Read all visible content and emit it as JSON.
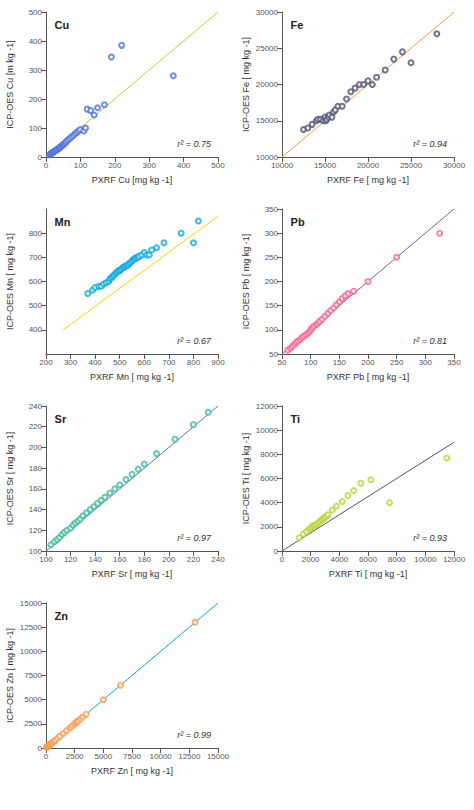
{
  "chart_data": [
    {
      "type": "scatter",
      "title": "Cu",
      "annotation": "r² = 0.75",
      "xlabel": "PXRF Cu [mg kg -1]",
      "ylabel": "ICP-OES Cu [m kg -1]",
      "xlim": [
        0,
        500
      ],
      "ylim": [
        0,
        500
      ],
      "xticks": [
        0,
        100,
        200,
        300,
        400,
        500
      ],
      "yticks": [
        0,
        100,
        200,
        300,
        400,
        500
      ],
      "grid": false,
      "series": [
        {
          "type": "scatter",
          "marker": "circle",
          "x": [
            10,
            12,
            15,
            18,
            20,
            22,
            25,
            28,
            30,
            32,
            35,
            38,
            40,
            42,
            45,
            48,
            50,
            52,
            55,
            58,
            60,
            65,
            70,
            75,
            80,
            85,
            90,
            95,
            100,
            110,
            115,
            120,
            130,
            140,
            150,
            170,
            190,
            220,
            370
          ],
          "values": [
            8,
            10,
            12,
            14,
            16,
            18,
            20,
            22,
            24,
            26,
            28,
            30,
            32,
            35,
            38,
            40,
            42,
            45,
            48,
            50,
            55,
            60,
            65,
            70,
            75,
            80,
            85,
            90,
            95,
            90,
            100,
            165,
            160,
            145,
            170,
            180,
            345,
            385,
            280
          ]
        },
        {
          "type": "line",
          "x": [
            0,
            500
          ],
          "values": [
            0,
            500
          ]
        }
      ]
    },
    {
      "type": "scatter",
      "title": "Fe",
      "annotation": "r² = 0.94",
      "xlabel": "PXRF Fe [ mg kg -1]",
      "ylabel": "ICP-OES Fe [ mg kg -1]",
      "xlim": [
        10000,
        30000
      ],
      "ylim": [
        10000,
        30000
      ],
      "xticks": [
        10000,
        15000,
        20000,
        25000,
        30000
      ],
      "yticks": [
        10000,
        15000,
        20000,
        25000,
        30000
      ],
      "grid": false,
      "series": [
        {
          "type": "scatter",
          "marker": "circle",
          "x": [
            12500,
            13000,
            13500,
            14000,
            14200,
            14500,
            14800,
            15000,
            15100,
            15200,
            15400,
            15500,
            15800,
            16000,
            16200,
            16500,
            17000,
            17500,
            18000,
            18500,
            19000,
            19500,
            20000,
            20500,
            21000,
            22000,
            23000,
            24000,
            25000,
            28000
          ],
          "values": [
            13800,
            14000,
            14500,
            15000,
            15200,
            15200,
            15000,
            15500,
            15000,
            15200,
            15500,
            15800,
            15500,
            16200,
            16500,
            17000,
            17000,
            18000,
            19000,
            19500,
            20000,
            20000,
            20500,
            20000,
            21000,
            22000,
            23500,
            24500,
            23000,
            27000
          ]
        },
        {
          "type": "line",
          "x": [
            10000,
            30000
          ],
          "values": [
            10000,
            30000
          ]
        }
      ]
    },
    {
      "type": "scatter",
      "title": "Mn",
      "annotation": "r² = 0.67",
      "xlabel": "PXRF Mn [ mg kg -1]",
      "ylabel": "ICP-OES Mn [ mg kg -1]",
      "xlim": [
        200,
        900
      ],
      "ylim": [
        300,
        900
      ],
      "xticks": [
        200,
        300,
        400,
        500,
        600,
        700,
        800,
        900
      ],
      "yticks": [
        400,
        500,
        600,
        700,
        800
      ],
      "grid": false,
      "series": [
        {
          "type": "scatter",
          "marker": "circle",
          "x": [
            370,
            390,
            400,
            415,
            425,
            435,
            445,
            455,
            460,
            465,
            470,
            475,
            480,
            485,
            490,
            495,
            500,
            505,
            510,
            515,
            520,
            525,
            530,
            535,
            540,
            545,
            550,
            555,
            560,
            565,
            570,
            575,
            580,
            590,
            600,
            610,
            620,
            630,
            650,
            680,
            750,
            800,
            820
          ],
          "values": [
            550,
            565,
            575,
            580,
            580,
            590,
            595,
            600,
            610,
            615,
            620,
            625,
            630,
            635,
            640,
            645,
            645,
            650,
            655,
            660,
            660,
            665,
            665,
            670,
            675,
            680,
            685,
            690,
            695,
            695,
            700,
            700,
            705,
            710,
            720,
            710,
            710,
            730,
            740,
            760,
            800,
            760,
            850
          ]
        },
        {
          "type": "line",
          "x": [
            270,
            900
          ],
          "values": [
            400,
            870
          ]
        }
      ]
    },
    {
      "type": "scatter",
      "title": "Pb",
      "annotation": "r² = 0.81",
      "xlabel": "PXRF Pb [ mg kg -1]",
      "ylabel": "ICP-OES Pb [ mg kg -1]",
      "xlim": [
        50,
        350
      ],
      "ylim": [
        50,
        350
      ],
      "xticks": [
        50,
        100,
        150,
        200,
        250,
        300,
        350
      ],
      "yticks": [
        50,
        100,
        150,
        200,
        250,
        300,
        350
      ],
      "grid": false,
      "series": [
        {
          "type": "scatter",
          "marker": "circle",
          "x": [
            60,
            65,
            68,
            72,
            75,
            78,
            82,
            85,
            88,
            92,
            95,
            98,
            100,
            103,
            106,
            110,
            113,
            116,
            120,
            125,
            130,
            135,
            140,
            145,
            150,
            155,
            160,
            165,
            175,
            200,
            250,
            325
          ],
          "values": [
            58,
            62,
            66,
            70,
            74,
            77,
            80,
            84,
            87,
            90,
            93,
            96,
            100,
            104,
            108,
            111,
            114,
            118,
            122,
            128,
            134,
            140,
            145,
            152,
            158,
            165,
            170,
            175,
            180,
            200,
            250,
            300
          ]
        },
        {
          "type": "line",
          "x": [
            50,
            350
          ],
          "values": [
            50,
            350
          ]
        }
      ]
    },
    {
      "type": "scatter",
      "title": "Sr",
      "annotation": "r² = 0.97",
      "xlabel": "PXRF Sr [ mg kg -1]",
      "ylabel": "ICP-OES Sr [ mg kg -1]",
      "xlim": [
        100,
        240
      ],
      "ylim": [
        100,
        240
      ],
      "xticks": [
        100,
        120,
        140,
        160,
        180,
        200,
        220,
        240
      ],
      "yticks": [
        100,
        120,
        140,
        160,
        180,
        200,
        220,
        240
      ],
      "grid": false,
      "series": [
        {
          "type": "scatter",
          "marker": "circle",
          "x": [
            104,
            107,
            109,
            111,
            113,
            115,
            117,
            120,
            122,
            124,
            126,
            128,
            130,
            133,
            136,
            139,
            142,
            145,
            148,
            152,
            156,
            160,
            165,
            170,
            175,
            180,
            190,
            205,
            220,
            232
          ],
          "values": [
            106,
            109,
            111,
            113,
            116,
            118,
            120,
            122,
            125,
            127,
            129,
            131,
            134,
            137,
            140,
            143,
            146,
            149,
            152,
            156,
            160,
            164,
            169,
            174,
            179,
            184,
            194,
            208,
            222,
            234
          ]
        },
        {
          "type": "line",
          "x": [
            100,
            240
          ],
          "values": [
            100,
            240
          ]
        }
      ]
    },
    {
      "type": "scatter",
      "title": "Ti",
      "annotation": "r² = 0.93",
      "xlabel": "PXRF Ti [ mg kg -1]",
      "ylabel": "ICP-OES Ti [ mg kg -1]",
      "xlim": [
        0,
        12000
      ],
      "ylim": [
        0,
        12000
      ],
      "xticks": [
        0,
        2000,
        4000,
        6000,
        8000,
        10000,
        12000
      ],
      "yticks": [
        0,
        2000,
        4000,
        6000,
        8000,
        10000,
        12000
      ],
      "grid": false,
      "series": [
        {
          "type": "scatter",
          "marker": "circle",
          "x": [
            1200,
            1500,
            1700,
            1900,
            2000,
            2100,
            2200,
            2300,
            2400,
            2500,
            2600,
            2700,
            2800,
            2900,
            3000,
            3100,
            3200,
            3500,
            3800,
            4200,
            4600,
            5000,
            5500,
            6200,
            7500,
            11500
          ],
          "values": [
            1100,
            1400,
            1600,
            1800,
            1900,
            2000,
            2100,
            2100,
            2200,
            2300,
            2400,
            2500,
            2600,
            2700,
            2800,
            2900,
            3000,
            3400,
            3700,
            4100,
            4600,
            5000,
            5600,
            5900,
            4000,
            7700
          ]
        },
        {
          "type": "line",
          "x": [
            0,
            12000
          ],
          "values": [
            0,
            9000
          ]
        }
      ]
    },
    {
      "type": "scatter",
      "title": "Zn",
      "annotation": "r² = 0.99",
      "xlabel": "PXRF Zn [ mg kg -1]",
      "ylabel": "ICP-OES Zn [ mg kg -1]",
      "xlim": [
        0,
        15000
      ],
      "ylim": [
        0,
        15000
      ],
      "xticks": [
        0,
        2500,
        5000,
        7500,
        10000,
        12500,
        15000
      ],
      "yticks": [
        0,
        2500,
        5000,
        7500,
        10000,
        12500,
        15000
      ],
      "grid": false,
      "series": [
        {
          "type": "scatter",
          "marker": "circle",
          "x": [
            50,
            100,
            150,
            200,
            250,
            300,
            350,
            400,
            450,
            500,
            600,
            700,
            800,
            1000,
            1200,
            1500,
            1800,
            2100,
            2300,
            2500,
            2600,
            2700,
            2800,
            3000,
            3200,
            3500,
            5000,
            6500,
            13000
          ],
          "values": [
            50,
            100,
            150,
            200,
            250,
            300,
            350,
            400,
            450,
            500,
            600,
            700,
            800,
            1000,
            1200,
            1500,
            1800,
            2100,
            2300,
            2500,
            2600,
            2700,
            2800,
            3000,
            3200,
            3500,
            5000,
            6500,
            13000
          ]
        },
        {
          "type": "line",
          "x": [
            0,
            15000
          ],
          "values": [
            0,
            15000
          ]
        }
      ]
    }
  ]
}
